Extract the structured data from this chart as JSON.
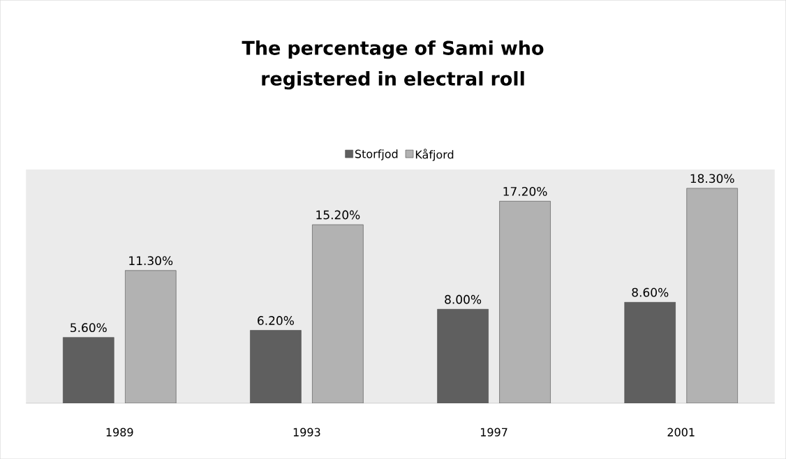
{
  "chart_data": {
    "type": "bar",
    "title": "The percentage of Sami who registered in electral roll",
    "categories": [
      "1989",
      "1993",
      "1997",
      "2001"
    ],
    "series": [
      {
        "name": "Storfjod",
        "color": "#5f5f5f",
        "values": [
          5.6,
          6.2,
          8.0,
          8.6
        ],
        "value_labels": [
          "5.60%",
          "6.20%",
          "8.00%",
          "8.60%"
        ]
      },
      {
        "name": "Kåfjord",
        "color": "#b2b2b2",
        "values": [
          11.3,
          15.2,
          17.2,
          18.3
        ],
        "value_labels": [
          "11.30%",
          "15.20%",
          "17.20%",
          "18.30%"
        ]
      }
    ],
    "legend": "top"
  }
}
